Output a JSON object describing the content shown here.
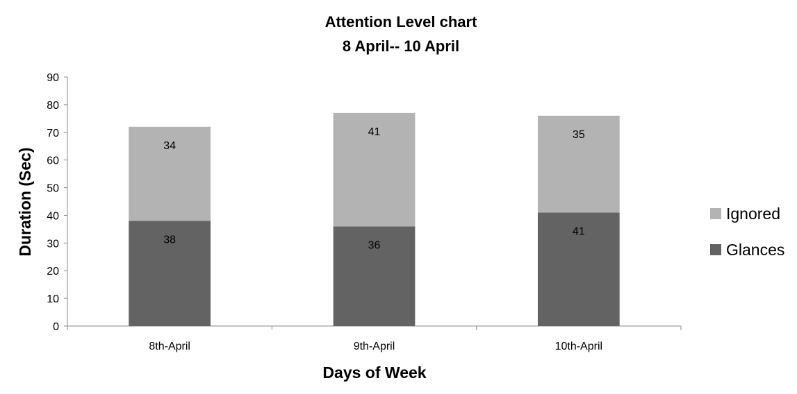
{
  "chart_data": {
    "type": "bar",
    "stacked": true,
    "title": "Attention Level chart",
    "subtitle": "8 April-- 10 April",
    "xlabel": "Days of Week",
    "ylabel": "Duration (Sec)",
    "categories": [
      "8th-April",
      "9th-April",
      "10th-April"
    ],
    "series": [
      {
        "name": "Glances",
        "values": [
          38,
          36,
          41
        ],
        "color": "#636363"
      },
      {
        "name": "Ignored",
        "values": [
          34,
          41,
          35
        ],
        "color": "#b3b3b3"
      }
    ],
    "ylim": [
      0,
      90
    ],
    "yticks": [
      0,
      10,
      20,
      30,
      40,
      50,
      60,
      70,
      80,
      90
    ],
    "grid": false,
    "legend_position": "right",
    "legend_order": [
      "Ignored",
      "Glances"
    ]
  }
}
